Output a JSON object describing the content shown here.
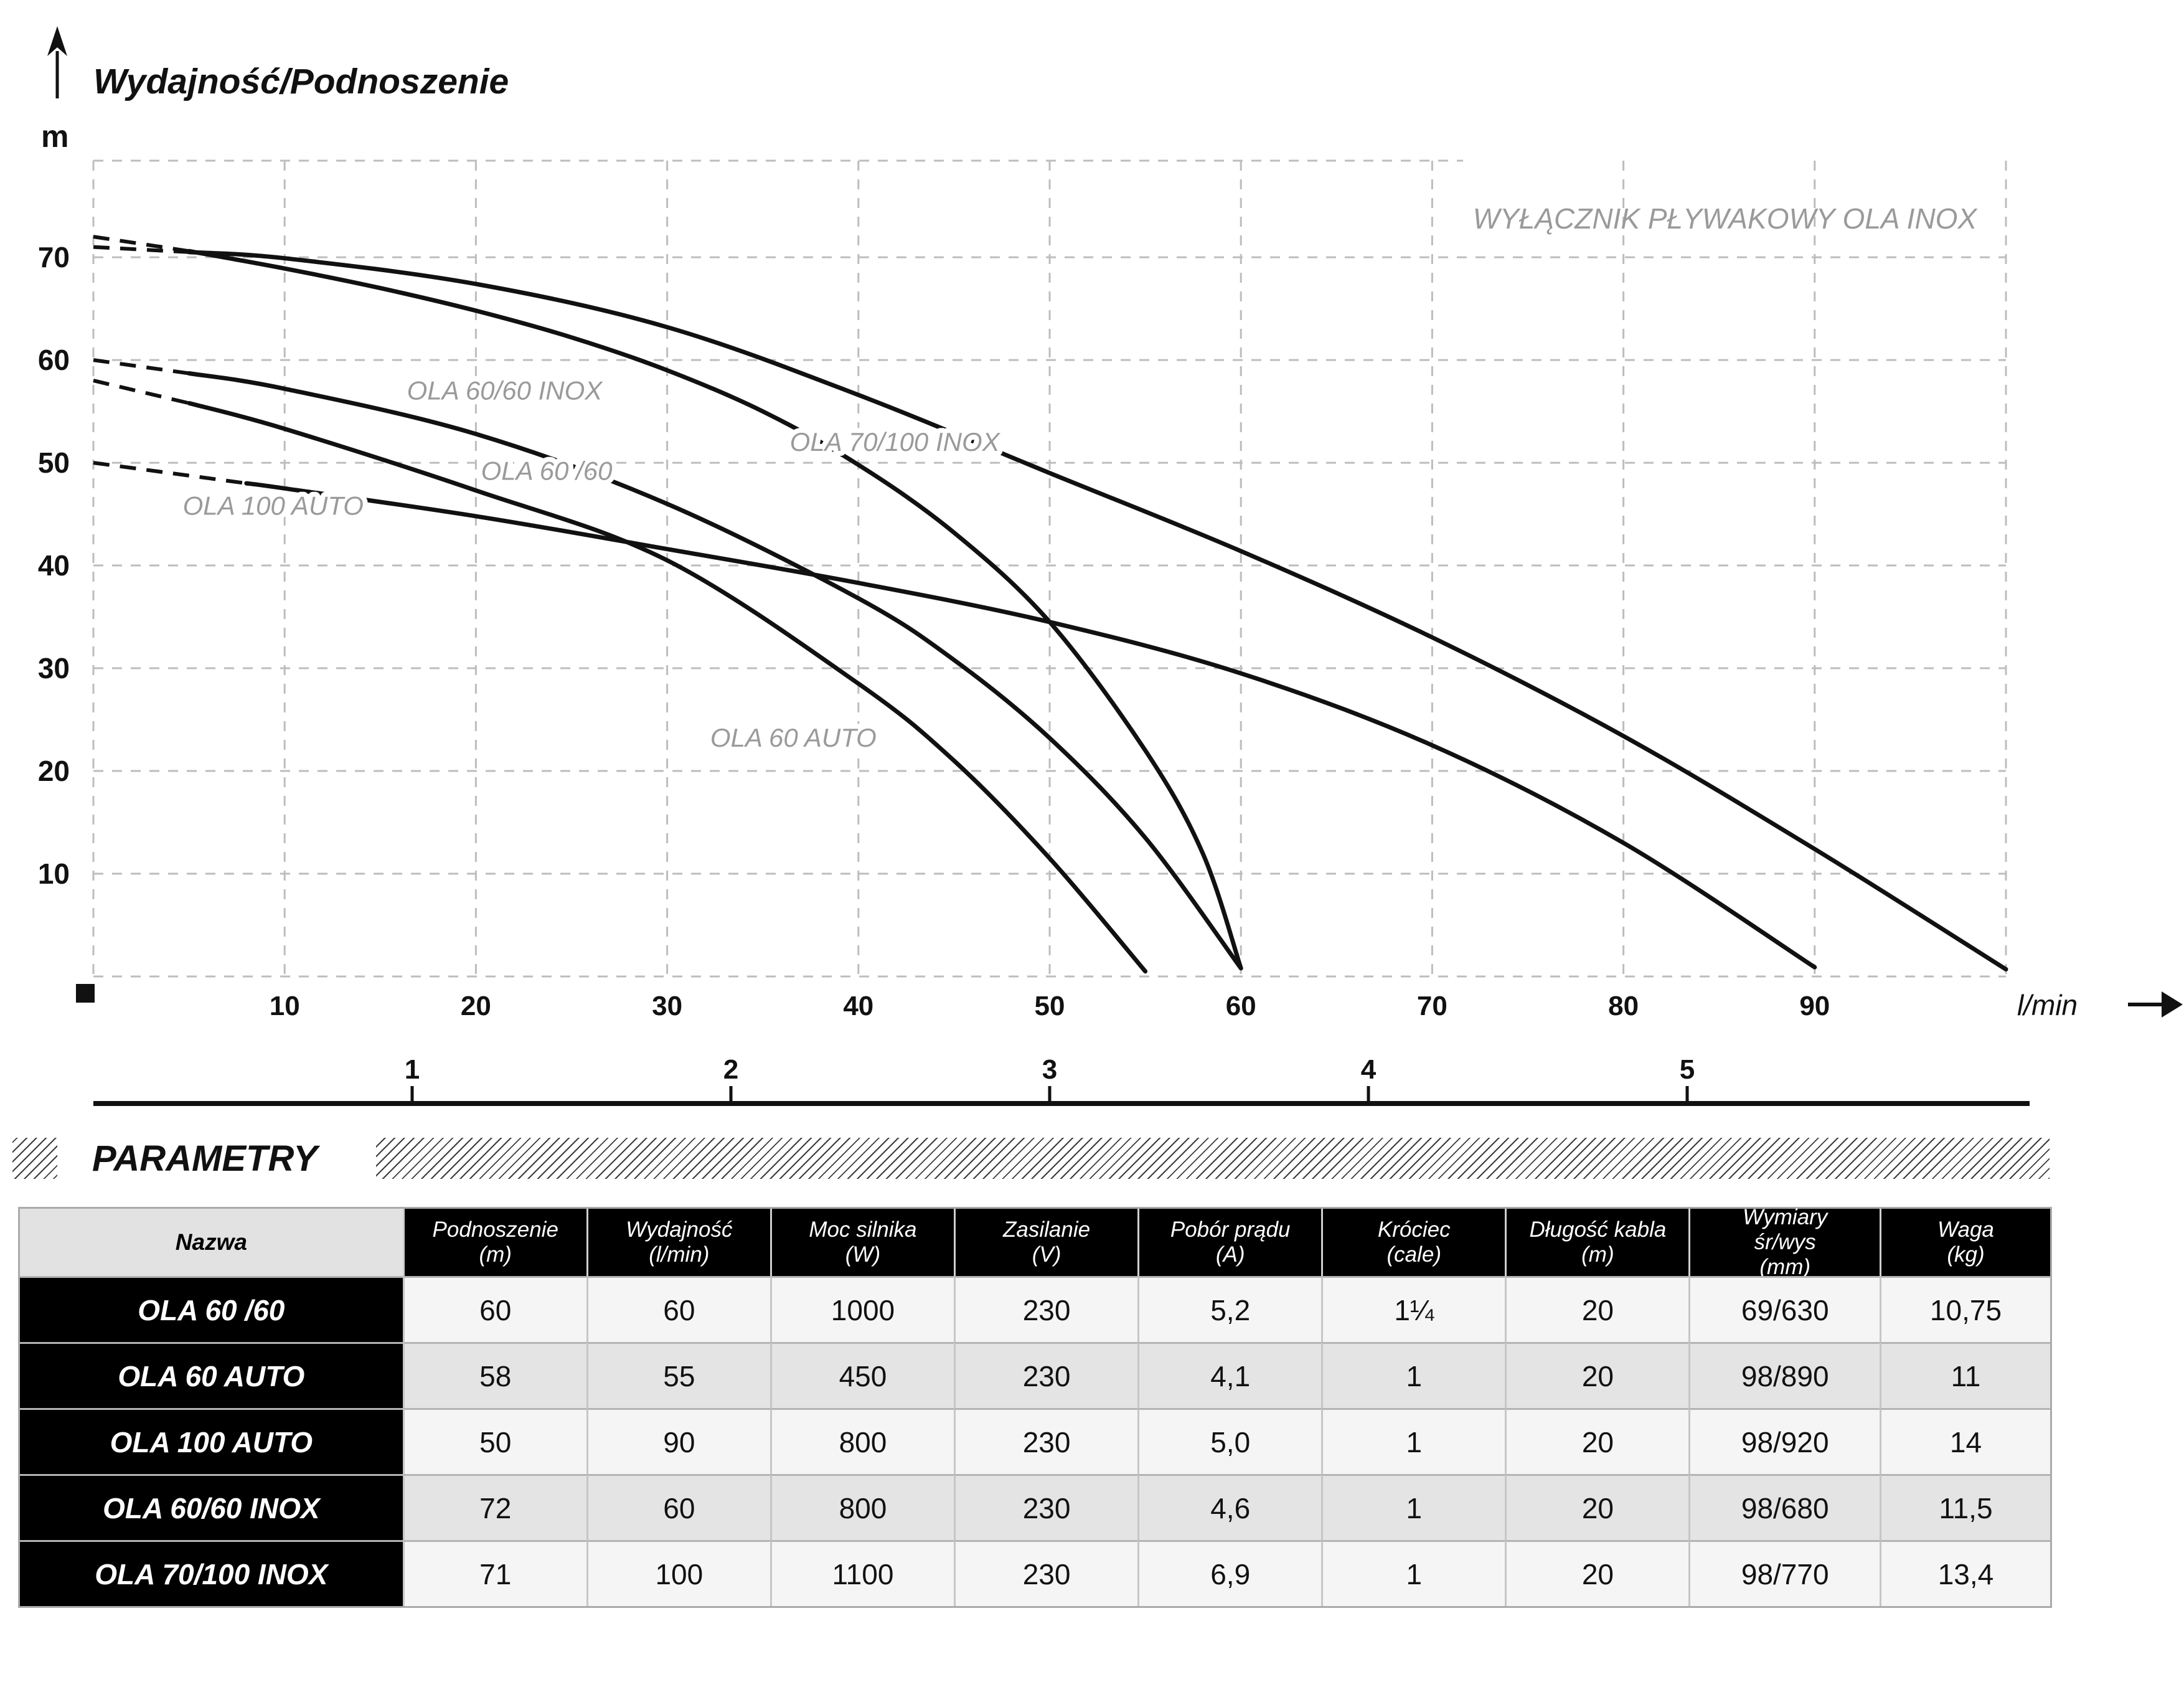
{
  "page": {
    "background": "#ffffff",
    "accent_black": "#111111",
    "gray_label": "#9a9a9a",
    "grid_color": "#bdbdbd"
  },
  "icons": {
    "y_axis_arrow": "arrow-up-icon",
    "x_axis_arrow": "arrow-right-icon",
    "origin_marker": "black-square-marker"
  },
  "chart_data": {
    "type": "line",
    "title": "Wydajność/Podnoszenie",
    "ylabel": "m",
    "xlabel": "l/min",
    "watermark": {
      "text": "WYŁĄCZNIK PŁYWAKOWY OLA INOX",
      "q": 85.3,
      "h": 73.7
    },
    "xlim": [
      0,
      100
    ],
    "ylim": [
      0,
      79.4
    ],
    "grid": true,
    "x_gridlines": [
      10,
      20,
      30,
      40,
      50,
      60,
      70,
      80,
      90,
      100
    ],
    "y_gridlines": [
      10,
      20,
      30,
      40,
      50,
      60,
      70
    ],
    "x_tick_labels": [
      10,
      20,
      30,
      40,
      50,
      60,
      70,
      80,
      90
    ],
    "y_tick_labels": [
      10,
      20,
      30,
      40,
      50,
      60,
      70
    ],
    "secondary_x_scale": {
      "unit_values": [
        1,
        2,
        3,
        4,
        5
      ],
      "lmin_per_unit": 16.6667
    },
    "series": [
      {
        "name": "OLA 60/60 INOX",
        "dash_end_q": 5,
        "points": [
          [
            0,
            72
          ],
          [
            5,
            70.6
          ],
          [
            10,
            68.9
          ],
          [
            15,
            67
          ],
          [
            20,
            64.8
          ],
          [
            25,
            62.2
          ],
          [
            30,
            59
          ],
          [
            35,
            55
          ],
          [
            40,
            49.8
          ],
          [
            45,
            43.2
          ],
          [
            50,
            34.5
          ],
          [
            55,
            22
          ],
          [
            58,
            12
          ],
          [
            60,
            0.8
          ]
        ],
        "label": {
          "text": "OLA 60/60 INOX",
          "q": 21.5,
          "h": 57.0
        }
      },
      {
        "name": "OLA 70/100 INOX",
        "dash_end_q": 5,
        "points": [
          [
            0,
            71
          ],
          [
            5,
            70.5
          ],
          [
            10,
            69.9
          ],
          [
            20,
            67.4
          ],
          [
            30,
            63.2
          ],
          [
            40,
            56.6
          ],
          [
            50,
            49
          ],
          [
            60,
            41.4
          ],
          [
            70,
            33
          ],
          [
            80,
            23.4
          ],
          [
            90,
            12.4
          ],
          [
            100,
            0.7
          ]
        ],
        "label": {
          "text": "OLA 70/100 INOX",
          "q": 41.9,
          "h": 52.0
        }
      },
      {
        "name": "OLA 60 /60",
        "dash_end_q": 5,
        "points": [
          [
            0,
            60
          ],
          [
            5,
            58.7
          ],
          [
            10,
            57.2
          ],
          [
            20,
            52.8
          ],
          [
            30,
            46
          ],
          [
            40,
            36.8
          ],
          [
            45,
            30.8
          ],
          [
            50,
            23.2
          ],
          [
            55,
            13.5
          ],
          [
            60,
            0.8
          ]
        ],
        "label": {
          "text": "OLA 60 /60",
          "q": 23.7,
          "h": 49.2
        }
      },
      {
        "name": "OLA 60 AUTO",
        "dash_end_q": 5,
        "points": [
          [
            0,
            58
          ],
          [
            5,
            55.8
          ],
          [
            10,
            53.3
          ],
          [
            20,
            47.3
          ],
          [
            30,
            40.5
          ],
          [
            40,
            28.5
          ],
          [
            45,
            21
          ],
          [
            50,
            11.5
          ],
          [
            55,
            0.5
          ]
        ],
        "label": {
          "text": "OLA 60 AUTO",
          "q": 36.6,
          "h": 23.2
        }
      },
      {
        "name": "OLA 100 AUTO",
        "dash_end_q": 8,
        "points": [
          [
            0,
            50
          ],
          [
            8,
            48
          ],
          [
            10,
            47.5
          ],
          [
            20,
            44.8
          ],
          [
            30,
            41.6
          ],
          [
            40,
            38.3
          ],
          [
            50,
            34.5
          ],
          [
            60,
            29.5
          ],
          [
            70,
            22.5
          ],
          [
            80,
            13
          ],
          [
            90,
            0.9
          ]
        ],
        "label": {
          "text": "OLA 100 AUTO",
          "q": 9.4,
          "h": 45.8
        }
      }
    ]
  },
  "parametry": {
    "title": "PARAMETRY"
  },
  "table": {
    "columns": [
      {
        "lines": [
          "Nazwa"
        ]
      },
      {
        "lines": [
          "Podnoszenie",
          "(m)"
        ]
      },
      {
        "lines": [
          "Wydajność",
          "(l/min)"
        ]
      },
      {
        "lines": [
          "Moc silnika",
          "(W)"
        ]
      },
      {
        "lines": [
          "Zasilanie",
          "(V)"
        ]
      },
      {
        "lines": [
          "Pobór prądu",
          "(A)"
        ]
      },
      {
        "lines": [
          "Króciec",
          "(cale)"
        ]
      },
      {
        "lines": [
          "Długość kabla",
          "(m)"
        ]
      },
      {
        "lines": [
          "Wymiary",
          "śr/wys",
          "(mm)"
        ]
      },
      {
        "lines": [
          "Waga",
          "(kg)"
        ]
      }
    ],
    "rows": [
      {
        "name": "OLA 60 /60",
        "values": [
          "60",
          "60",
          "1000",
          "230",
          "5,2",
          "1¼",
          "20",
          "69/630",
          "10,75"
        ]
      },
      {
        "name": "OLA 60 AUTO",
        "values": [
          "58",
          "55",
          "450",
          "230",
          "4,1",
          "1",
          "20",
          "98/890",
          "11"
        ]
      },
      {
        "name": "OLA 100 AUTO",
        "values": [
          "50",
          "90",
          "800",
          "230",
          "5,0",
          "1",
          "20",
          "98/920",
          "14"
        ]
      },
      {
        "name": "OLA 60/60 INOX",
        "values": [
          "72",
          "60",
          "800",
          "230",
          "4,6",
          "1",
          "20",
          "98/680",
          "11,5"
        ]
      },
      {
        "name": "OLA 70/100 INOX",
        "values": [
          "71",
          "100",
          "1100",
          "230",
          "6,9",
          "1",
          "20",
          "98/770",
          "13,4"
        ]
      }
    ]
  }
}
